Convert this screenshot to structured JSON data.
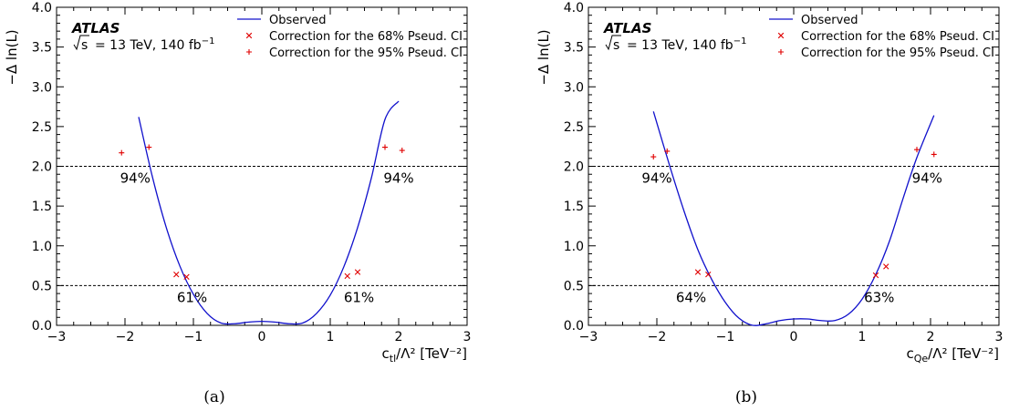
{
  "chart_data": [
    {
      "type": "line",
      "panel_label": "(a)",
      "experiment": "ATLAS",
      "energy_text": "= 13 TeV, 140 fb",
      "lumi_sup": "−1",
      "sqrt_s_label": "s",
      "xlabel_main": "c",
      "xlabel_sub": "tl",
      "xlabel_rest": "/Λ² [TeV⁻²]",
      "ylabel": "−Δ ln(L)",
      "xlim": [
        -3,
        3
      ],
      "ylim": [
        0,
        4
      ],
      "x_ticks": [
        "−3",
        "−2",
        "−1",
        "0",
        "1",
        "2",
        "3"
      ],
      "y_ticks": [
        "0.0",
        "0.5",
        "1.0",
        "1.5",
        "2.0",
        "2.5",
        "3.0",
        "3.5",
        "4.0"
      ],
      "reference_lines": [
        0.5,
        2.0
      ],
      "legend": [
        {
          "marker": "line",
          "label": "Observed"
        },
        {
          "marker": "x",
          "label": "Correction for the 68% Pseud. CI"
        },
        {
          "marker": "plus",
          "label": "Correction for the 95% Pseud. CI"
        }
      ],
      "observed_curve": {
        "x": [
          -1.8,
          -1.6,
          -1.4,
          -1.2,
          -1.0,
          -0.8,
          -0.6,
          -0.4,
          -0.2,
          0.0,
          0.2,
          0.4,
          0.6,
          0.8,
          1.0,
          1.2,
          1.4,
          1.6,
          1.8,
          2.0
        ],
        "y": [
          2.62,
          1.87,
          1.24,
          0.75,
          0.39,
          0.15,
          0.03,
          0.02,
          0.04,
          0.05,
          0.04,
          0.02,
          0.03,
          0.15,
          0.38,
          0.74,
          1.23,
          1.85,
          2.59,
          2.82
        ]
      },
      "correction_68": {
        "x": [
          -1.25,
          -1.1,
          1.25,
          1.4
        ],
        "y": [
          0.64,
          0.61,
          0.62,
          0.67
        ]
      },
      "correction_95": {
        "x": [
          -2.05,
          -1.65,
          1.8,
          2.05
        ],
        "y": [
          2.17,
          2.24,
          2.24,
          2.2
        ]
      },
      "annotations": [
        {
          "text": "94%",
          "x": -1.85,
          "y": 1.85
        },
        {
          "text": "94%",
          "x": 2.0,
          "y": 1.85
        },
        {
          "text": "61%",
          "x": -1.02,
          "y": 0.35
        },
        {
          "text": "61%",
          "x": 1.42,
          "y": 0.35
        }
      ]
    },
    {
      "type": "line",
      "panel_label": "(b)",
      "experiment": "ATLAS",
      "energy_text": "= 13 TeV, 140 fb",
      "lumi_sup": "−1",
      "sqrt_s_label": "s",
      "xlabel_main": "c",
      "xlabel_sub": "Qe",
      "xlabel_rest": "/Λ² [TeV⁻²]",
      "ylabel": "−Δ ln(L)",
      "xlim": [
        -3,
        3
      ],
      "ylim": [
        0,
        4
      ],
      "x_ticks": [
        "−3",
        "−2",
        "−1",
        "0",
        "1",
        "2",
        "3"
      ],
      "y_ticks": [
        "0.0",
        "0.5",
        "1.0",
        "1.5",
        "2.0",
        "2.5",
        "3.0",
        "3.5",
        "4.0"
      ],
      "reference_lines": [
        0.5,
        2.0
      ],
      "legend": [
        {
          "marker": "line",
          "label": "Observed"
        },
        {
          "marker": "x",
          "label": "Correction for the 68% Pseud. CI"
        },
        {
          "marker": "plus",
          "label": "Correction for the 95% Pseud. CI"
        }
      ],
      "observed_curve": {
        "x": [
          -2.05,
          -1.8,
          -1.6,
          -1.4,
          -1.2,
          -1.0,
          -0.8,
          -0.6,
          -0.4,
          -0.2,
          0.0,
          0.2,
          0.4,
          0.6,
          0.8,
          1.0,
          1.2,
          1.4,
          1.6,
          1.8,
          2.05
        ],
        "y": [
          2.69,
          1.97,
          1.43,
          0.95,
          0.58,
          0.29,
          0.09,
          0.0,
          0.02,
          0.06,
          0.08,
          0.08,
          0.06,
          0.06,
          0.14,
          0.33,
          0.64,
          1.06,
          1.6,
          2.11,
          2.64
        ]
      },
      "correction_68": {
        "x": [
          -1.4,
          -1.25,
          1.2,
          1.35
        ],
        "y": [
          0.67,
          0.64,
          0.63,
          0.74
        ]
      },
      "correction_95": {
        "x": [
          -2.05,
          -1.85,
          1.8,
          2.05
        ],
        "y": [
          2.12,
          2.19,
          2.21,
          2.15
        ]
      },
      "annotations": [
        {
          "text": "94%",
          "x": -2.0,
          "y": 1.85
        },
        {
          "text": "94%",
          "x": 1.95,
          "y": 1.85
        },
        {
          "text": "64%",
          "x": -1.5,
          "y": 0.35
        },
        {
          "text": "63%",
          "x": 1.25,
          "y": 0.35
        }
      ]
    }
  ]
}
